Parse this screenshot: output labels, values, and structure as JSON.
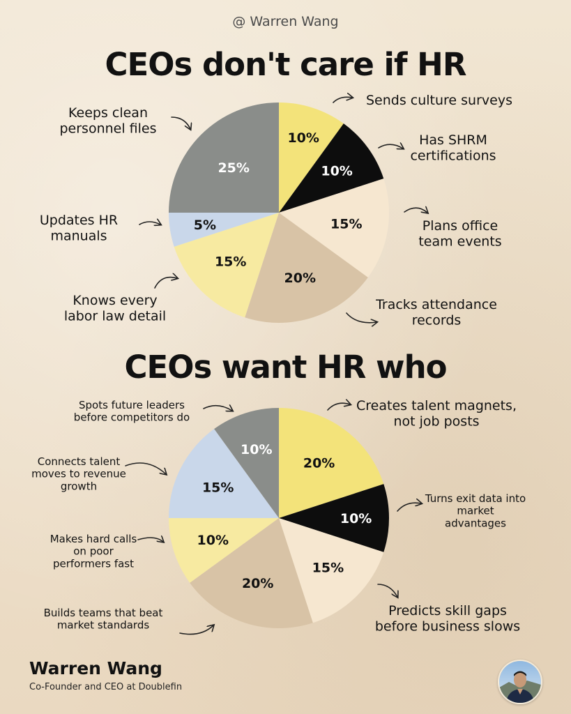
{
  "header": {
    "handle": "@ Warren Wang"
  },
  "colors": {
    "gray": "#8a8d8a",
    "yellow": "#f3e37a",
    "black": "#0d0d0d",
    "cream": "#f6e7d0",
    "tan": "#d8c3a6",
    "paleYellow": "#f7eaa1",
    "lightBlue": "#c9d7ea",
    "lineColor": "#222222"
  },
  "chart_data": [
    {
      "type": "pie",
      "title": "CEOs don't care if HR",
      "slices": [
        {
          "label": "Sends culture surveys",
          "value": 10,
          "display": "10%",
          "color": "yellow"
        },
        {
          "label": "Has SHRM certifications",
          "value": 10,
          "display": "10%",
          "color": "black"
        },
        {
          "label": "Plans office team events",
          "value": 15,
          "display": "15%",
          "color": "cream"
        },
        {
          "label": "Tracks attendance records",
          "value": 20,
          "display": "20%",
          "color": "tan"
        },
        {
          "label": "Knows every labor law detail",
          "value": 15,
          "display": "15%",
          "color": "paleYellow"
        },
        {
          "label": "Updates HR manuals",
          "value": 5,
          "display": "5%",
          "color": "lightBlue"
        },
        {
          "label": "Keeps clean personnel files",
          "value": 25,
          "display": "25%",
          "color": "gray"
        }
      ]
    },
    {
      "type": "pie",
      "title": "CEOs want HR who",
      "slices": [
        {
          "label": "Creates talent magnets, not job posts",
          "value": 20,
          "display": "20%",
          "color": "yellow"
        },
        {
          "label": "Turns exit data into market advantages",
          "value": 10,
          "display": "10%",
          "color": "black"
        },
        {
          "label": "Predicts skill gaps before business slows",
          "value": 15,
          "display": "15%",
          "color": "cream"
        },
        {
          "label": "Builds teams that beat market standards",
          "value": 20,
          "display": "20%",
          "color": "tan"
        },
        {
          "label": "Makes hard calls on poor performers fast",
          "value": 10,
          "display": "10%",
          "color": "paleYellow"
        },
        {
          "label": "Connects talent moves to revenue growth",
          "value": 15,
          "display": "15%",
          "color": "lightBlue"
        },
        {
          "label": "Spots future leaders before competitors do",
          "value": 10,
          "display": "10%",
          "color": "gray"
        }
      ]
    }
  ],
  "footer": {
    "name": "Warren Wang",
    "role": "Co-Founder and CEO at Doublefin"
  }
}
